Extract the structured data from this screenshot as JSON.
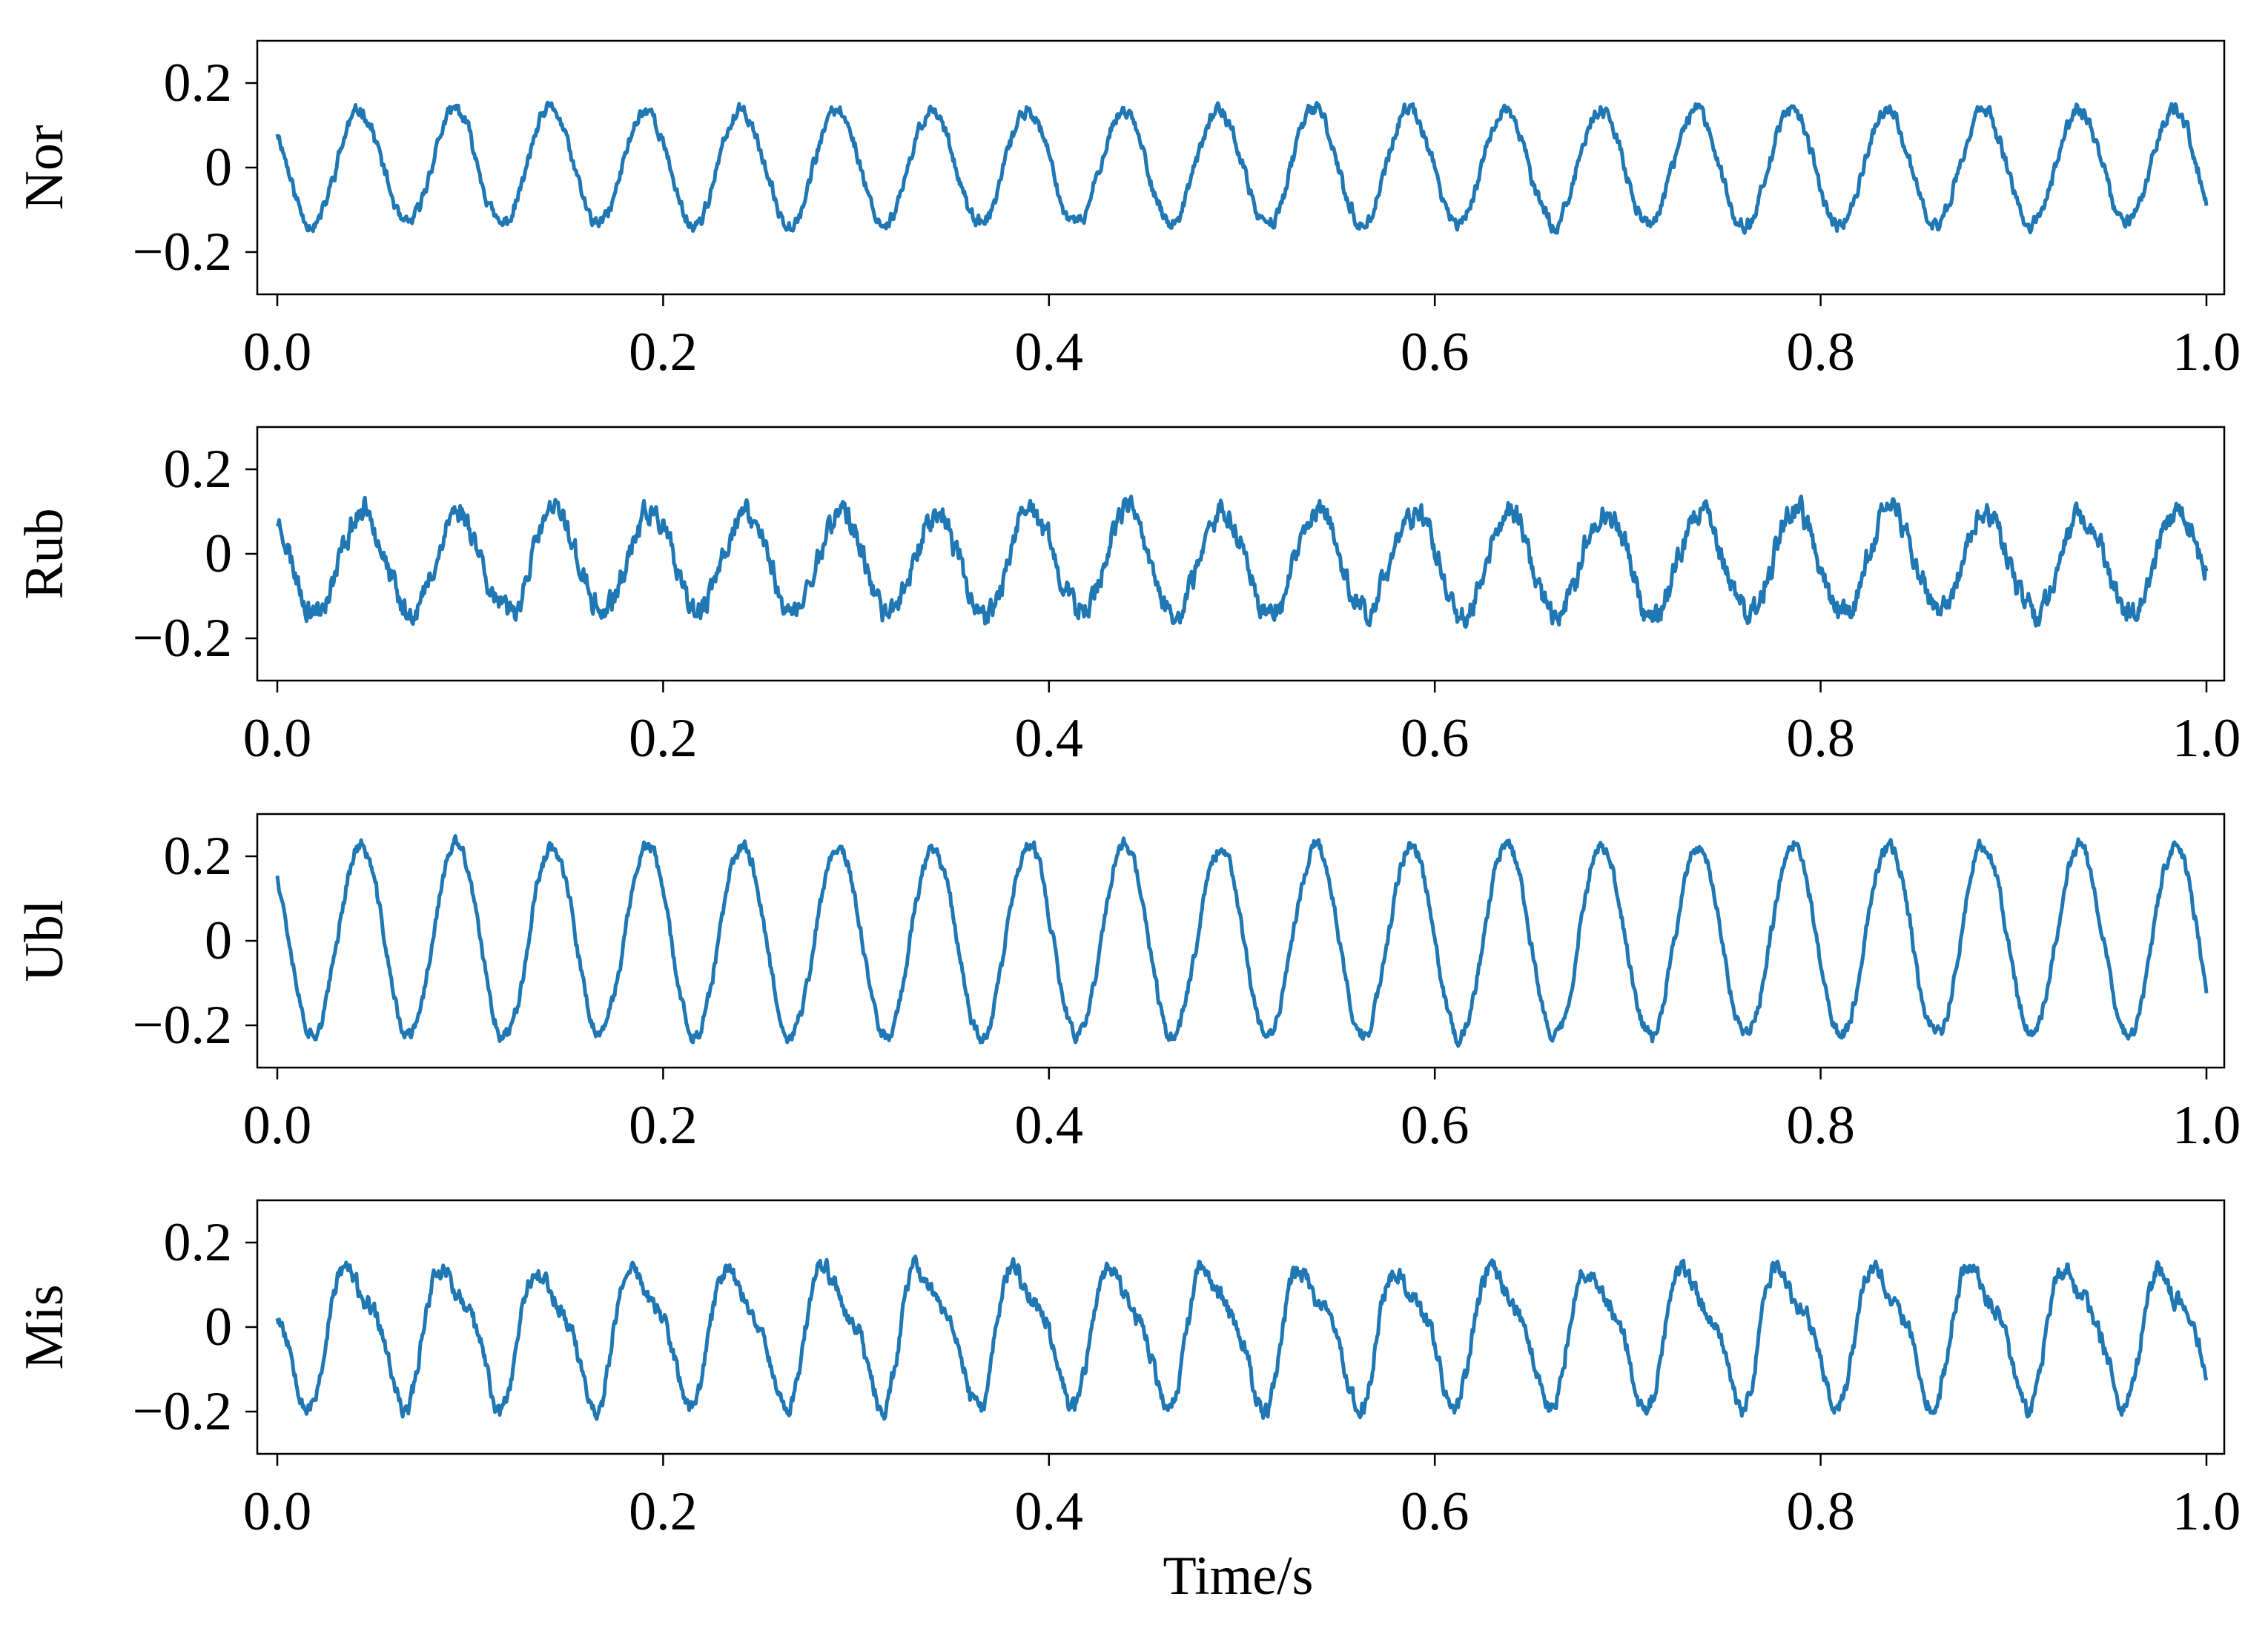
{
  "figure": {
    "xlabel": "Time/s",
    "line_color": "#1f77b4"
  },
  "chart_data": [
    {
      "type": "line",
      "ylabel": "Nor",
      "xlim": [
        0.0,
        1.0
      ],
      "ylim": [
        -0.3,
        0.3
      ],
      "x_ticks": [
        0.0,
        0.2,
        0.4,
        0.6,
        0.8,
        1.0
      ],
      "x_tick_labels": [
        "0.0",
        "0.2",
        "0.4",
        "0.6",
        "0.8",
        "1.0"
      ],
      "y_ticks": [
        -0.2,
        0,
        0.2
      ],
      "y_tick_labels": [
        "−0.2",
        "0",
        "0.2"
      ],
      "signal": {
        "samples": 2048,
        "period_s": 0.0495,
        "amplitude": 0.135,
        "phase_deg": 140,
        "offset": 0.0,
        "harmonic2": 0.0,
        "noise": 0.012,
        "seed": 11
      },
      "x": [
        0.0,
        0.0495,
        0.099,
        0.1485,
        0.198,
        0.2475,
        0.297,
        0.3465,
        0.396,
        0.4455,
        0.495,
        0.5445,
        0.594,
        0.6435,
        0.693,
        0.7425,
        0.792,
        0.8415,
        0.891,
        0.9405,
        0.99
      ],
      "y": [
        0.09,
        0.15,
        0.16,
        0.15,
        0.15,
        0.16,
        0.15,
        0.16,
        0.15,
        0.15,
        0.16,
        0.16,
        0.16,
        0.16,
        0.16,
        0.15,
        0.16,
        0.15,
        0.16,
        0.15,
        0.14
      ]
    },
    {
      "type": "line",
      "ylabel": "Rub",
      "xlim": [
        0.0,
        1.0
      ],
      "ylim": [
        -0.3,
        0.3
      ],
      "x_ticks": [
        0.0,
        0.2,
        0.4,
        0.6,
        0.8,
        1.0
      ],
      "x_tick_labels": [
        "0.0",
        "0.2",
        "0.4",
        "0.6",
        "0.8",
        "1.0"
      ],
      "y_ticks": [
        -0.2,
        0,
        0.2
      ],
      "y_tick_labels": [
        "−0.2",
        "0",
        "0.2"
      ],
      "signal": {
        "samples": 2048,
        "period_s": 0.0495,
        "amplitude": 0.12,
        "phase_deg": 125,
        "offset": -0.02,
        "harmonic2": 0.0,
        "noise": 0.022,
        "seed": 23
      },
      "x": [
        0.0,
        0.0495,
        0.099,
        0.1485,
        0.198,
        0.2475,
        0.297,
        0.3465,
        0.396,
        0.4455,
        0.495,
        0.5445,
        0.594,
        0.6435,
        0.693,
        0.7425,
        0.792,
        0.8415,
        0.891,
        0.9405,
        0.99
      ],
      "y": [
        0.13,
        0.13,
        0.12,
        0.12,
        0.12,
        0.13,
        0.12,
        0.13,
        0.12,
        0.12,
        0.12,
        0.13,
        0.12,
        0.12,
        0.12,
        0.13,
        0.12,
        0.12,
        0.12,
        0.12,
        0.1
      ]
    },
    {
      "type": "line",
      "ylabel": "Ubl",
      "xlim": [
        0.0,
        1.0
      ],
      "ylim": [
        -0.3,
        0.3
      ],
      "x_ticks": [
        0.0,
        0.2,
        0.4,
        0.6,
        0.8,
        1.0
      ],
      "x_tick_labels": [
        "0.0",
        "0.2",
        "0.4",
        "0.6",
        "0.8",
        "1.0"
      ],
      "y_ticks": [
        -0.2,
        0,
        0.2
      ],
      "y_tick_labels": [
        "−0.2",
        "0",
        "0.2"
      ],
      "signal": {
        "samples": 2048,
        "period_s": 0.0495,
        "amplitude": 0.225,
        "phase_deg": 135,
        "offset": 0.0,
        "harmonic2": 0.0,
        "noise": 0.012,
        "seed": 37
      },
      "x": [
        0.0,
        0.0495,
        0.099,
        0.1485,
        0.198,
        0.2475,
        0.297,
        0.3465,
        0.396,
        0.4455,
        0.495,
        0.5445,
        0.594,
        0.6435,
        0.693,
        0.7425,
        0.792,
        0.8415,
        0.891,
        0.9405,
        0.99
      ],
      "y": [
        0.15,
        0.25,
        0.23,
        0.23,
        0.23,
        0.24,
        0.23,
        0.23,
        0.23,
        0.23,
        0.24,
        0.24,
        0.23,
        0.23,
        0.23,
        0.23,
        0.23,
        0.23,
        0.23,
        0.23,
        0.22
      ]
    },
    {
      "type": "line",
      "ylabel": "Mis",
      "xlim": [
        0.0,
        1.0
      ],
      "ylim": [
        -0.3,
        0.3
      ],
      "x_ticks": [
        0.0,
        0.2,
        0.4,
        0.6,
        0.8,
        1.0
      ],
      "x_tick_labels": [
        "0.0",
        "0.2",
        "0.4",
        "0.6",
        "0.8",
        "1.0"
      ],
      "y_ticks": [
        -0.2,
        0,
        0.2
      ],
      "y_tick_labels": [
        "−0.2",
        "0",
        "0.2"
      ],
      "signal": {
        "samples": 2048,
        "period_s": 0.0495,
        "amplitude": 0.15,
        "phase_deg": 165,
        "offset": -0.01,
        "harmonic2": 0.045,
        "noise": 0.016,
        "seed": 53
      },
      "x": [
        0.0,
        0.0495,
        0.099,
        0.1485,
        0.198,
        0.2475,
        0.297,
        0.3465,
        0.396,
        0.4455,
        0.495,
        0.5445,
        0.594,
        0.6435,
        0.693,
        0.7425,
        0.792,
        0.8415,
        0.891,
        0.9405,
        0.99
      ],
      "y": [
        0.02,
        0.16,
        0.17,
        0.16,
        0.16,
        0.17,
        0.16,
        0.16,
        0.16,
        0.16,
        0.16,
        0.16,
        0.16,
        0.16,
        0.16,
        0.16,
        0.17,
        0.16,
        0.16,
        0.16,
        0.0
      ]
    }
  ]
}
